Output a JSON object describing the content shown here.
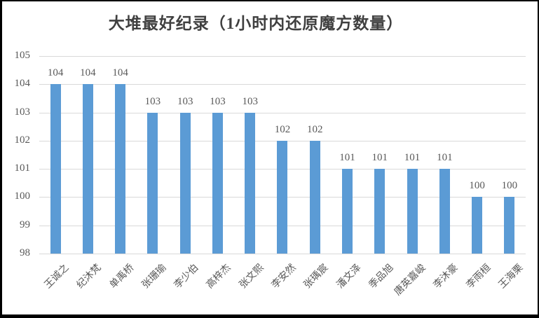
{
  "chart_data": {
    "type": "bar",
    "title": "大堆最好纪录（1小时内还原魔方数量）",
    "categories": [
      "王诚之",
      "纪沐梵",
      "单禹桥",
      "张珊瑜",
      "李少伯",
      "高梓杰",
      "张文熙",
      "李安然",
      "张瑀宸",
      "潘文泽",
      "季品旭",
      "唐英嘉峻",
      "李沐豪",
      "李雨桓",
      "王海栗"
    ],
    "values": [
      104,
      104,
      104,
      103,
      103,
      103,
      103,
      102,
      102,
      101,
      101,
      101,
      101,
      100,
      100
    ],
    "data_labels_shown": true,
    "xlabel": "",
    "ylabel": "",
    "ylim": [
      98,
      105
    ],
    "yticks": [
      98,
      99,
      100,
      101,
      102,
      103,
      104,
      105
    ],
    "grid": "horizontal",
    "legend": "none",
    "x_label_rotation_deg": 45,
    "colors": {
      "bar": "#5b9bd5",
      "gridline": "#d9d9d9",
      "axis_text": "#595959",
      "title_text": "#404040",
      "frame_border": "#000000",
      "background": "#ffffff"
    }
  }
}
